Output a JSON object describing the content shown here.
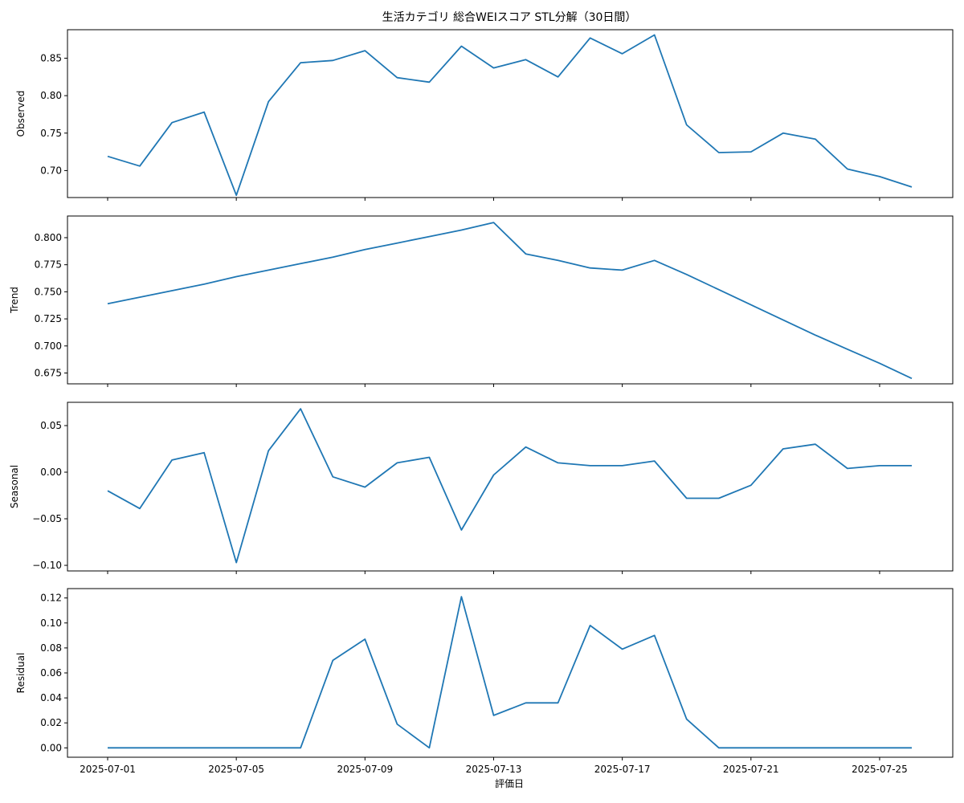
{
  "chart_data": {
    "type": "line",
    "title": "生活カテゴリ 総合WEIスコア STL分解（30日間）",
    "xlabel": "評価日",
    "line_color": "#1f77b4",
    "x": [
      "2025-07-01",
      "2025-07-02",
      "2025-07-03",
      "2025-07-04",
      "2025-07-05",
      "2025-07-06",
      "2025-07-07",
      "2025-07-08",
      "2025-07-09",
      "2025-07-10",
      "2025-07-11",
      "2025-07-12",
      "2025-07-13",
      "2025-07-14",
      "2025-07-15",
      "2025-07-16",
      "2025-07-17",
      "2025-07-18",
      "2025-07-19",
      "2025-07-20",
      "2025-07-21",
      "2025-07-22",
      "2025-07-23",
      "2025-07-24",
      "2025-07-25",
      "2025-07-26"
    ],
    "x_ticks": [
      "2025-07-01",
      "2025-07-05",
      "2025-07-09",
      "2025-07-13",
      "2025-07-17",
      "2025-07-21",
      "2025-07-25"
    ],
    "panels": [
      {
        "ylabel": "Observed",
        "ylim": [
          0.664,
          0.888
        ],
        "yticks": [
          "0.70",
          "0.75",
          "0.80",
          "0.85"
        ],
        "ytick_values": [
          0.7,
          0.75,
          0.8,
          0.85
        ],
        "values": [
          0.719,
          0.706,
          0.764,
          0.778,
          0.667,
          0.792,
          0.844,
          0.847,
          0.86,
          0.824,
          0.818,
          0.866,
          0.837,
          0.848,
          0.825,
          0.877,
          0.856,
          0.881,
          0.761,
          0.724,
          0.725,
          0.75,
          0.742,
          0.702,
          0.692,
          0.678
        ]
      },
      {
        "ylabel": "Trend",
        "ylim": [
          0.665,
          0.82
        ],
        "yticks": [
          "0.675",
          "0.700",
          "0.725",
          "0.750",
          "0.775",
          "0.800"
        ],
        "ytick_values": [
          0.675,
          0.7,
          0.725,
          0.75,
          0.775,
          0.8
        ],
        "values": [
          0.739,
          0.745,
          0.751,
          0.757,
          0.764,
          0.77,
          0.776,
          0.782,
          0.789,
          0.795,
          0.801,
          0.807,
          0.814,
          0.785,
          0.779,
          0.772,
          0.77,
          0.779,
          0.766,
          0.752,
          0.738,
          0.724,
          0.71,
          0.697,
          0.684,
          0.67
        ]
      },
      {
        "ylabel": "Seasonal",
        "ylim": [
          -0.106,
          0.075
        ],
        "yticks": [
          "−0.10",
          "−0.05",
          "0.00",
          "0.05"
        ],
        "ytick_values": [
          -0.1,
          -0.05,
          0.0,
          0.05
        ],
        "values": [
          -0.02,
          -0.039,
          0.013,
          0.021,
          -0.097,
          0.023,
          0.068,
          -0.005,
          -0.016,
          0.01,
          0.016,
          -0.062,
          -0.003,
          0.027,
          0.01,
          0.007,
          0.007,
          0.012,
          -0.028,
          -0.028,
          -0.014,
          0.025,
          0.03,
          0.004,
          0.007,
          0.007
        ]
      },
      {
        "ylabel": "Residual",
        "ylim": [
          -0.0075,
          0.1275
        ],
        "yticks": [
          "0.00",
          "0.02",
          "0.04",
          "0.06",
          "0.08",
          "0.10",
          "0.12"
        ],
        "ytick_values": [
          0.0,
          0.02,
          0.04,
          0.06,
          0.08,
          0.1,
          0.12
        ],
        "values": [
          0,
          0,
          0,
          0,
          0,
          0,
          0,
          0.07,
          0.087,
          0.019,
          0,
          0.121,
          0.026,
          0.036,
          0.036,
          0.098,
          0.079,
          0.09,
          0.023,
          0,
          0,
          0,
          0,
          0,
          0,
          0
        ]
      }
    ]
  }
}
